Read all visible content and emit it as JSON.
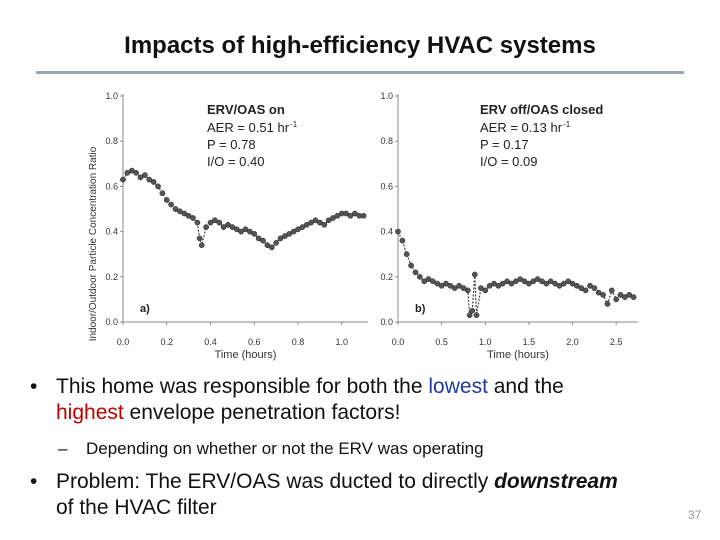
{
  "slide": {
    "title": "Impacts of high-efficiency HVAC systems",
    "page_number": "37"
  },
  "bullets": {
    "b1_pre": "This home was responsible for both the ",
    "b1_lowest": "lowest",
    "b1_mid": " and the",
    "b1_highest": "highest",
    "b1_post": " envelope penetration factors!",
    "sub_dash": "–",
    "sub": "Depending on whether or not the ERV was operating",
    "b2_pre": "Problem: The ERV/OAS was ducted to directly ",
    "b2_emph": "downstream",
    "b2_post": "of the HVAC filter",
    "marker": "•"
  },
  "chart_data": [
    {
      "type": "line",
      "panel_label": "a)",
      "ylabel": "Indoor/Outdoor Particle Concentration Ratio",
      "xlabel": "Time (hours)",
      "xlim": [
        0,
        1.12
      ],
      "ylim": [
        0,
        1.0
      ],
      "xticks": [
        "0.0",
        "0.2",
        "0.4",
        "0.6",
        "0.8",
        "1.0"
      ],
      "yticks": [
        "0.0",
        "0.2",
        "0.4",
        "0.6",
        "0.8",
        "1.0"
      ],
      "annotation_title": "ERV/OAS on",
      "annotation_lines": [
        "AER = 0.51 hr",
        "P = 0.78",
        "I/O = 0.40"
      ],
      "annotation_sup": "-1",
      "series": [
        {
          "name": "I/O ratio",
          "x": [
            0.0,
            0.02,
            0.04,
            0.06,
            0.08,
            0.1,
            0.12,
            0.14,
            0.16,
            0.18,
            0.2,
            0.22,
            0.24,
            0.26,
            0.28,
            0.3,
            0.32,
            0.34,
            0.35,
            0.36,
            0.38,
            0.4,
            0.42,
            0.44,
            0.46,
            0.48,
            0.5,
            0.52,
            0.54,
            0.56,
            0.58,
            0.6,
            0.62,
            0.64,
            0.66,
            0.68,
            0.7,
            0.72,
            0.74,
            0.76,
            0.78,
            0.8,
            0.82,
            0.84,
            0.86,
            0.88,
            0.9,
            0.92,
            0.94,
            0.96,
            0.98,
            1.0,
            1.02,
            1.04,
            1.06,
            1.08,
            1.1
          ],
          "y": [
            0.63,
            0.66,
            0.67,
            0.66,
            0.64,
            0.65,
            0.63,
            0.62,
            0.6,
            0.57,
            0.54,
            0.52,
            0.5,
            0.49,
            0.48,
            0.47,
            0.46,
            0.44,
            0.37,
            0.34,
            0.42,
            0.44,
            0.45,
            0.44,
            0.42,
            0.43,
            0.42,
            0.41,
            0.4,
            0.41,
            0.4,
            0.39,
            0.37,
            0.36,
            0.34,
            0.33,
            0.35,
            0.37,
            0.38,
            0.39,
            0.4,
            0.41,
            0.42,
            0.43,
            0.44,
            0.45,
            0.44,
            0.43,
            0.45,
            0.46,
            0.47,
            0.48,
            0.48,
            0.47,
            0.48,
            0.47,
            0.47
          ]
        }
      ]
    },
    {
      "type": "line",
      "panel_label": "b)",
      "ylabel": "",
      "xlabel": "Time (hours)",
      "xlim": [
        0,
        2.75
      ],
      "ylim": [
        0,
        1.0
      ],
      "xticks": [
        "0.0",
        "0.5",
        "1.0",
        "1.5",
        "2.0",
        "2.5"
      ],
      "yticks": [
        "0.0",
        "0.2",
        "0.4",
        "0.6",
        "0.8",
        "1.0"
      ],
      "annotation_title": "ERV off/OAS closed",
      "annotation_lines": [
        "AER = 0.13 hr",
        "P = 0.17",
        "I/O = 0.09"
      ],
      "annotation_sup": "-1",
      "series": [
        {
          "name": "I/O ratio",
          "x": [
            0.0,
            0.05,
            0.1,
            0.15,
            0.2,
            0.25,
            0.3,
            0.35,
            0.4,
            0.45,
            0.5,
            0.55,
            0.6,
            0.65,
            0.7,
            0.75,
            0.8,
            0.82,
            0.85,
            0.88,
            0.9,
            0.95,
            1.0,
            1.05,
            1.1,
            1.15,
            1.2,
            1.25,
            1.3,
            1.35,
            1.4,
            1.45,
            1.5,
            1.55,
            1.6,
            1.65,
            1.7,
            1.75,
            1.8,
            1.85,
            1.9,
            1.95,
            2.0,
            2.05,
            2.1,
            2.15,
            2.2,
            2.25,
            2.3,
            2.35,
            2.4,
            2.45,
            2.5,
            2.55,
            2.6,
            2.65,
            2.7
          ],
          "y": [
            0.4,
            0.36,
            0.3,
            0.25,
            0.22,
            0.2,
            0.18,
            0.19,
            0.18,
            0.17,
            0.16,
            0.17,
            0.16,
            0.15,
            0.16,
            0.15,
            0.14,
            0.03,
            0.05,
            0.21,
            0.03,
            0.15,
            0.14,
            0.16,
            0.17,
            0.16,
            0.17,
            0.18,
            0.17,
            0.18,
            0.19,
            0.18,
            0.17,
            0.18,
            0.19,
            0.18,
            0.17,
            0.18,
            0.17,
            0.16,
            0.17,
            0.18,
            0.17,
            0.16,
            0.15,
            0.14,
            0.16,
            0.15,
            0.13,
            0.12,
            0.08,
            0.14,
            0.1,
            0.12,
            0.11,
            0.12,
            0.11
          ]
        }
      ]
    }
  ]
}
